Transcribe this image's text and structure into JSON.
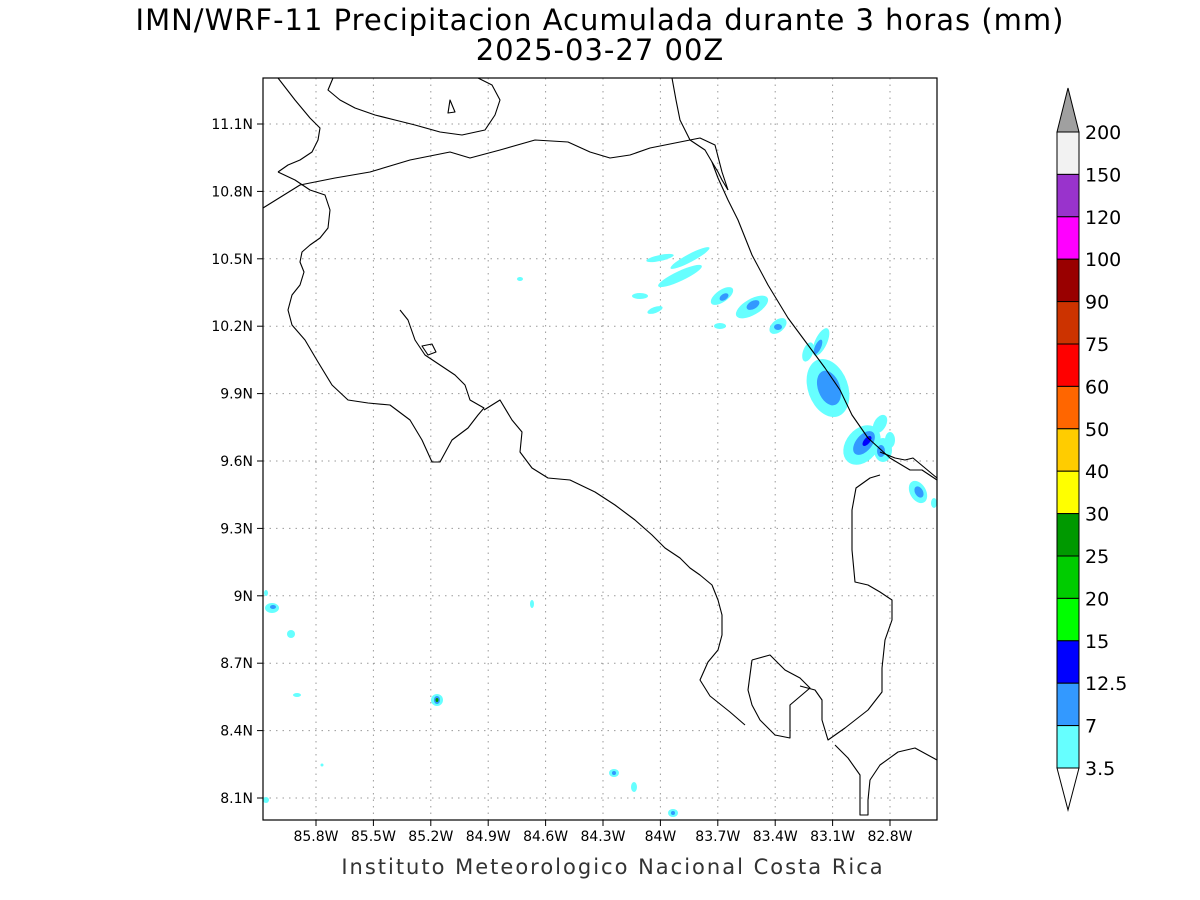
{
  "title": {
    "line1": "IMN/WRF-11 Precipitacion Acumulada durante 3 horas (mm)",
    "line2": "2025-03-27 00Z"
  },
  "map": {
    "lon_range": [
      -86.0,
      -83.0
    ],
    "lat_range": [
      8.0,
      11.2
    ],
    "x_ticks": [
      "85.8W",
      "85.5W",
      "85.2W",
      "84.9W",
      "84.6W",
      "84.3W",
      "84W",
      "83.7W",
      "83.4W",
      "83.1W",
      "82.8W"
    ],
    "y_ticks": [
      "11.1N",
      "10.8N",
      "10.5N",
      "10.2N",
      "9.9N",
      "9.6N",
      "9.3N",
      "9N",
      "8.7N",
      "8.4N",
      "8.1N"
    ],
    "grid": "dotted"
  },
  "colorbar": {
    "labels": [
      "200",
      "150",
      "120",
      "100",
      "90",
      "75",
      "60",
      "50",
      "40",
      "30",
      "25",
      "20",
      "15",
      "12.5",
      "7",
      "3.5"
    ],
    "colors_top_to_bottom": [
      "#f2f2f2",
      "#9933cc",
      "#ff00ff",
      "#990000",
      "#cc3300",
      "#ff0000",
      "#ff6600",
      "#ffcc00",
      "#ffff00",
      "#009900",
      "#00cc00",
      "#00ff00",
      "#0000ff",
      "#3399ff",
      "#66ffff"
    ],
    "above_max_color": "#a0a0a0",
    "below_min_color": "#ffffff"
  },
  "footer": "Instituto Meteorologico Nacional Costa Rica"
}
